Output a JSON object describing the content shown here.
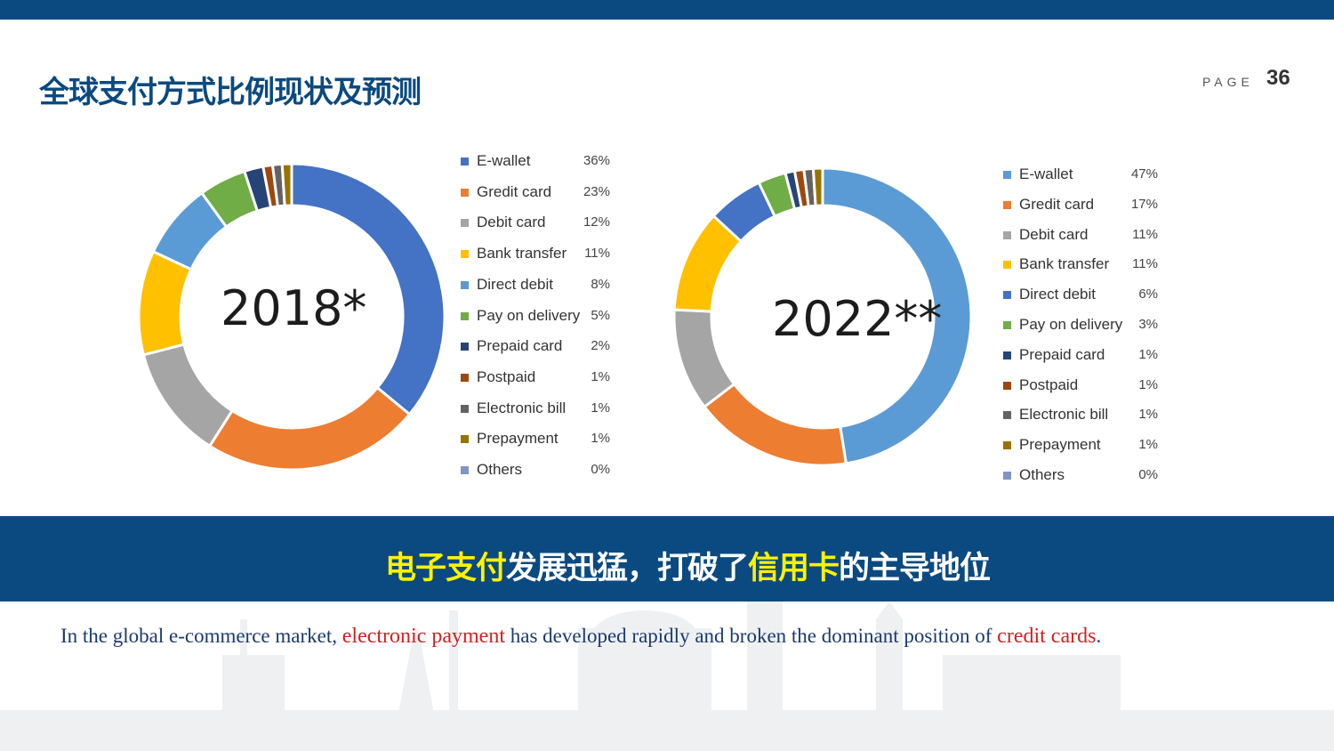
{
  "header": {
    "title": "全球支付方式比例现状及预测",
    "page_label": "PAGE",
    "page_number": "36"
  },
  "banner": {
    "part1": "电子支付",
    "part2": "发展迅猛，打破了",
    "part3": "信用卡",
    "part4": "的主导地位"
  },
  "caption": {
    "part1": "In the global e-commerce market, ",
    "part2": "electronic payment",
    "part3": " has developed rapidly and broken the dominant position of ",
    "part4": "credit cards",
    "part5": "."
  },
  "chart_data": [
    {
      "type": "pie",
      "title": "2018*",
      "categories": [
        "E-wallet",
        "Gredit card",
        "Debit card",
        "Bank transfer",
        "Direct debit",
        "Pay on delivery",
        "Prepaid card",
        "Postpaid",
        "Electronic bill",
        "Prepayment",
        "Others"
      ],
      "values": [
        36,
        23,
        12,
        11,
        8,
        5,
        2,
        1,
        1,
        1,
        0
      ],
      "labels": [
        "36%",
        "23%",
        "12%",
        "11%",
        "8%",
        "5%",
        "2%",
        "1%",
        "1%",
        "1%",
        "0%"
      ],
      "colors": [
        "#4472c4",
        "#ed7d31",
        "#a5a5a5",
        "#ffc000",
        "#5b9bd5",
        "#70ad47",
        "#264478",
        "#9e480e",
        "#636363",
        "#997300",
        "#7f95c8"
      ],
      "legend": "right"
    },
    {
      "type": "pie",
      "title": "2022**",
      "categories": [
        "E-wallet",
        "Gredit card",
        "Debit card",
        "Bank transfer",
        "Direct debit",
        "Pay on delivery",
        "Prepaid card",
        "Postpaid",
        "Electronic bill",
        "Prepayment",
        "Others"
      ],
      "values": [
        47,
        17,
        11,
        11,
        6,
        3,
        1,
        1,
        1,
        1,
        0
      ],
      "labels": [
        "47%",
        "17%",
        "11%",
        "11%",
        "6%",
        "3%",
        "1%",
        "1%",
        "1%",
        "1%",
        "0%"
      ],
      "colors": [
        "#5b9bd5",
        "#ed7d31",
        "#a5a5a5",
        "#ffc000",
        "#4472c4",
        "#70ad47",
        "#264478",
        "#9e480e",
        "#636363",
        "#997300",
        "#7f95c8"
      ],
      "legend": "right"
    }
  ]
}
